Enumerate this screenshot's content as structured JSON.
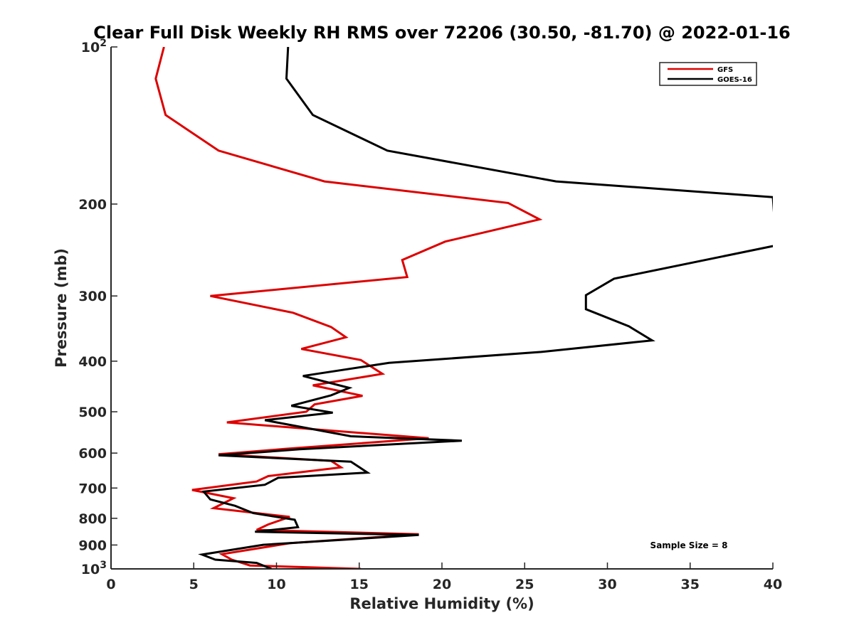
{
  "chart_data": {
    "type": "line",
    "title": "Clear Full Disk Weekly RH RMS over 72206 (30.50, -81.70) @ 2022-01-16",
    "xlabel": "Relative Humidity (%)",
    "ylabel": "Pressure (mb)",
    "xlim": [
      0,
      40
    ],
    "ylim": [
      100,
      1000
    ],
    "y_scale": "log",
    "y_reversed": true,
    "x_ticks": [
      "0",
      "5",
      "10",
      "15",
      "20",
      "25",
      "30",
      "35",
      "40"
    ],
    "y_ticks": [
      {
        "value": 100,
        "base": "10",
        "exp": "2"
      },
      {
        "value": 200,
        "label": "200"
      },
      {
        "value": 300,
        "label": "300"
      },
      {
        "value": 400,
        "label": "400"
      },
      {
        "value": 500,
        "label": "500"
      },
      {
        "value": 600,
        "label": "600"
      },
      {
        "value": 700,
        "label": "700"
      },
      {
        "value": 800,
        "label": "800"
      },
      {
        "value": 900,
        "label": "900"
      },
      {
        "value": 1000,
        "base": "10",
        "exp": "3"
      }
    ],
    "legend_position": "top-right",
    "annotation": "Sample Size = 8",
    "series": [
      {
        "name": "GFS",
        "color": "#dd0000",
        "points": [
          [
            3.2,
            100
          ],
          [
            2.7,
            115
          ],
          [
            3.3,
            135
          ],
          [
            6.5,
            158
          ],
          [
            12.9,
            181
          ],
          [
            24.0,
            199
          ],
          [
            25.9,
            214
          ],
          [
            20.2,
            236
          ],
          [
            17.6,
            256
          ],
          [
            17.9,
            276
          ],
          [
            6.0,
            300
          ],
          [
            11.0,
            323
          ],
          [
            13.3,
            344
          ],
          [
            14.2,
            360
          ],
          [
            11.5,
            379
          ],
          [
            15.1,
            398
          ],
          [
            16.4,
            423
          ],
          [
            12.2,
            445
          ],
          [
            15.2,
            466
          ],
          [
            12.3,
            484
          ],
          [
            11.8,
            500
          ],
          [
            7.0,
            524
          ],
          [
            19.2,
            562
          ],
          [
            10.5,
            589
          ],
          [
            6.5,
            603
          ],
          [
            13.3,
            621
          ],
          [
            13.9,
            639
          ],
          [
            9.5,
            664
          ],
          [
            8.8,
            680
          ],
          [
            4.9,
            706
          ],
          [
            7.4,
            732
          ],
          [
            6.2,
            765
          ],
          [
            10.8,
            795
          ],
          [
            9.5,
            822
          ],
          [
            8.8,
            842
          ],
          [
            18.6,
            858
          ],
          [
            10.8,
            893
          ],
          [
            6.7,
            937
          ],
          [
            7.3,
            960
          ],
          [
            8.4,
            985
          ],
          [
            15.1,
            1000
          ]
        ]
      },
      {
        "name": "GOES-16",
        "color": "#000000",
        "points": [
          [
            10.7,
            100
          ],
          [
            10.6,
            115
          ],
          [
            12.2,
            135
          ],
          [
            16.7,
            158
          ],
          [
            26.9,
            181
          ],
          [
            40.0,
            194
          ],
          [
            40.2,
            240
          ],
          [
            30.4,
            278
          ],
          [
            28.7,
            299
          ],
          [
            28.7,
            318
          ],
          [
            31.3,
            343
          ],
          [
            32.7,
            365
          ],
          [
            26.0,
            384
          ],
          [
            16.8,
            403
          ],
          [
            11.6,
            427
          ],
          [
            14.4,
            450
          ],
          [
            13.3,
            465
          ],
          [
            10.9,
            487
          ],
          [
            13.4,
            502
          ],
          [
            9.3,
            519
          ],
          [
            14.5,
            557
          ],
          [
            21.2,
            568
          ],
          [
            11.4,
            590
          ],
          [
            6.5,
            606
          ],
          [
            14.5,
            623
          ],
          [
            15.5,
            654
          ],
          [
            10.1,
            669
          ],
          [
            9.3,
            690
          ],
          [
            5.6,
            711
          ],
          [
            6.0,
            736
          ],
          [
            7.5,
            757
          ],
          [
            8.6,
            782
          ],
          [
            11.1,
            805
          ],
          [
            11.3,
            832
          ],
          [
            8.7,
            849
          ],
          [
            18.6,
            861
          ],
          [
            9.2,
            899
          ],
          [
            5.5,
            939
          ],
          [
            6.3,
            960
          ],
          [
            8.8,
            974
          ],
          [
            9.7,
            1000
          ]
        ]
      }
    ]
  }
}
